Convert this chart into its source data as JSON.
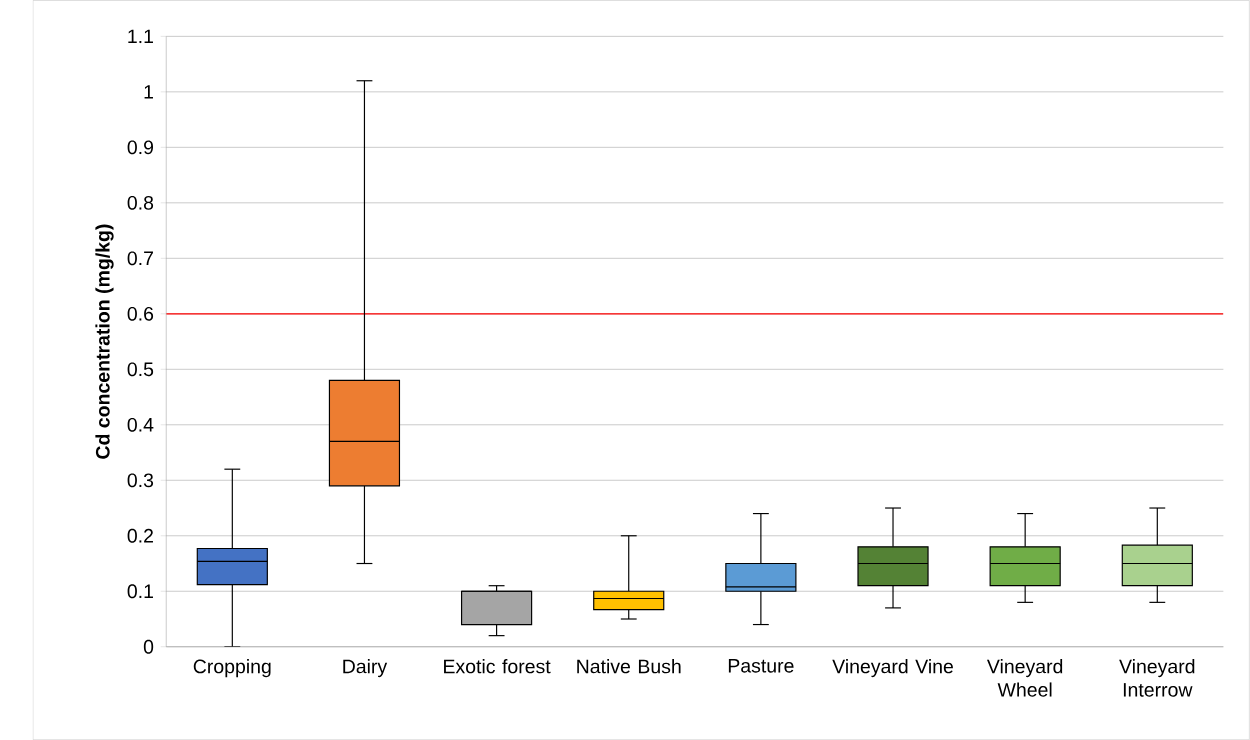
{
  "chart_data": {
    "type": "box",
    "ylabel": "Cd concentration (mg/kg)",
    "categories": [
      "Cropping",
      "Dairy",
      "Exotic forest",
      "Native Bush",
      "Pasture",
      "Vineyard Vine",
      "Vineyard Wheel",
      "Vineyard Interrow"
    ],
    "colors": [
      "#4472c4",
      "#ed7d31",
      "#a5a5a5",
      "#ffc000",
      "#5b9bd5",
      "#548235",
      "#70ad47",
      "#a9d18e"
    ],
    "boxes": [
      {
        "low": 0,
        "q1": 0.112,
        "median": 0.154,
        "q3": 0.177,
        "high": 0.32
      },
      {
        "low": 0.15,
        "q1": 0.29,
        "median": 0.37,
        "q3": 0.48,
        "high": 1.02
      },
      {
        "low": 0.02,
        "q1": 0.04,
        "median": 0.1,
        "q3": 0.1,
        "high": 0.11
      },
      {
        "low": 0.05,
        "q1": 0.067,
        "median": 0.087,
        "q3": 0.1,
        "high": 0.2
      },
      {
        "low": 0.04,
        "q1": 0.1,
        "median": 0.108,
        "q3": 0.15,
        "high": 0.24
      },
      {
        "low": 0.07,
        "q1": 0.11,
        "median": 0.15,
        "q3": 0.18,
        "high": 0.25
      },
      {
        "low": 0.08,
        "q1": 0.11,
        "median": 0.15,
        "q3": 0.18,
        "high": 0.24
      },
      {
        "low": 0.08,
        "q1": 0.11,
        "median": 0.15,
        "q3": 0.183,
        "high": 0.25
      }
    ],
    "ylim": [
      0,
      1.1
    ],
    "yticks": [
      0,
      0.1,
      0.2,
      0.3,
      0.4,
      0.5,
      0.6,
      0.7,
      0.8,
      0.9,
      1,
      1.1
    ],
    "grid": "y",
    "ref_lines": [
      {
        "axis": "y",
        "value": 0.6,
        "color": "#ff0000"
      }
    ]
  }
}
